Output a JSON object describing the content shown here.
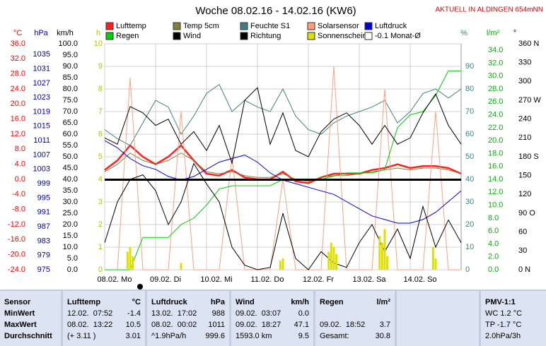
{
  "chart_data": {
    "type": "line",
    "title": "Woche 08.02.16 - 14.02.16 (KW6)",
    "subtitle": "AKTUELL IN ALDINGEN 654mNN",
    "x": [
      0,
      0.25,
      0.5,
      0.75,
      1,
      1.25,
      1.5,
      1.75,
      2,
      2.25,
      2.5,
      2.75,
      3,
      3.25,
      3.5,
      3.75,
      4,
      4.25,
      4.5,
      4.75,
      5,
      5.25,
      5.5,
      5.75,
      6,
      6.25,
      6.5,
      6.75,
      7
    ],
    "xlim": [
      0,
      7
    ],
    "xticks": [
      {
        "value": 0,
        "label": "08.02. Mo"
      },
      {
        "value": 1,
        "label": "09.02. Di"
      },
      {
        "value": 2,
        "label": "10.02. Mi"
      },
      {
        "value": 3,
        "label": "11.02. Do"
      },
      {
        "value": 4,
        "label": "12.02. Fr"
      },
      {
        "value": 5,
        "label": "13.02. Sa"
      },
      {
        "value": 6,
        "label": "14.02. So"
      }
    ],
    "axes": [
      {
        "label": "°C",
        "color": "#ff0000",
        "lim": [
          -24,
          36
        ],
        "ticks": [
          {
            "value": 36,
            "label": "36.0"
          },
          {
            "value": 32,
            "label": "32.0"
          },
          {
            "value": 28,
            "label": "28.0"
          },
          {
            "value": 24,
            "label": "24.0"
          },
          {
            "value": 20,
            "label": "20.0"
          },
          {
            "value": 16,
            "label": "16.0"
          },
          {
            "value": 12,
            "label": "12.0"
          },
          {
            "value": 8,
            "label": "8.0"
          },
          {
            "value": 4,
            "label": "4.0"
          },
          {
            "value": 0,
            "label": "0.0"
          },
          {
            "value": -4,
            "label": "-4.0"
          },
          {
            "value": -8,
            "label": "-8.0"
          },
          {
            "value": -12,
            "label": "-12.0"
          },
          {
            "value": -16,
            "label": "-16.0"
          },
          {
            "value": -20,
            "label": "-20.0"
          },
          {
            "value": -24,
            "label": "-24.0"
          }
        ]
      },
      {
        "label": "hPa",
        "color": "#0000c0",
        "lim": [
          975,
          1038
        ],
        "ticks": [
          1035,
          1031,
          1027,
          1023,
          1019,
          1015,
          1011,
          1007,
          1003,
          999,
          995,
          991,
          987,
          983,
          979,
          975
        ]
      },
      {
        "label": "km/h",
        "color": "#000000",
        "lim": [
          0,
          100
        ],
        "ticks": [
          {
            "value": 100,
            "label": "100.0"
          },
          {
            "value": 95,
            "label": "95.0"
          },
          {
            "value": 90,
            "label": "90.0"
          },
          {
            "value": 85,
            "label": "85.0"
          },
          {
            "value": 80,
            "label": "80.0"
          },
          {
            "value": 75,
            "label": "75.0"
          },
          {
            "value": 70,
            "label": "70.0"
          },
          {
            "value": 65,
            "label": "65.0"
          },
          {
            "value": 60,
            "label": "60.0"
          },
          {
            "value": 55,
            "label": "55.0"
          },
          {
            "value": 50,
            "label": "50.0"
          },
          {
            "value": 45,
            "label": "45.0"
          },
          {
            "value": 40,
            "label": "40.0"
          },
          {
            "value": 35,
            "label": "35.0"
          },
          {
            "value": 30,
            "label": "30.0"
          },
          {
            "value": 25,
            "label": "25.0"
          },
          {
            "value": 20,
            "label": "20.0"
          },
          {
            "value": 15,
            "label": "15.0"
          },
          {
            "value": 10,
            "label": "10.0"
          },
          {
            "value": 5,
            "label": "5.0"
          },
          {
            "value": 0,
            "label": "0.0"
          }
        ]
      },
      {
        "label": "h",
        "color": "#c0c000",
        "lim": [
          0,
          10
        ],
        "ticks": [
          10,
          9,
          8,
          7,
          6,
          5,
          4,
          3,
          2,
          1,
          0
        ],
        "grid": true
      },
      {
        "label": "%",
        "color": "#408080",
        "lim": [
          0,
          100
        ],
        "ticks": [
          90,
          80,
          70,
          60,
          50,
          40,
          30,
          20,
          10,
          0
        ]
      },
      {
        "label": "l/m²",
        "color": "#00b000",
        "lim": [
          0,
          35
        ],
        "ticks": [
          {
            "value": 34,
            "label": "34.0"
          },
          {
            "value": 32,
            "label": "32.0"
          },
          {
            "value": 30,
            "label": "30.0"
          },
          {
            "value": 28,
            "label": "28.0"
          },
          {
            "value": 26,
            "label": "26.0"
          },
          {
            "value": 24,
            "label": "24.0"
          },
          {
            "value": 22,
            "label": "22.0"
          },
          {
            "value": 20,
            "label": "20.0"
          },
          {
            "value": 18,
            "label": "18.0"
          },
          {
            "value": 16,
            "label": "16.0"
          },
          {
            "value": 14,
            "label": "14.0"
          },
          {
            "value": 12,
            "label": "12.0"
          },
          {
            "value": 10,
            "label": "10.0"
          },
          {
            "value": 8,
            "label": "8.0"
          },
          {
            "value": 6,
            "label": "6.0"
          },
          {
            "value": 4,
            "label": "4.0"
          },
          {
            "value": 2,
            "label": "2.0"
          },
          {
            "value": 0,
            "label": "0.0"
          }
        ]
      },
      {
        "label": "°",
        "color": "#000000",
        "lim": [
          0,
          360
        ],
        "ticks": [
          {
            "value": 360,
            "label": "360 N"
          },
          {
            "value": 330,
            "label": "330"
          },
          {
            "value": 300,
            "label": "300"
          },
          {
            "value": 270,
            "label": "270 W"
          },
          {
            "value": 240,
            "label": "240"
          },
          {
            "value": 210,
            "label": "210"
          },
          {
            "value": 180,
            "label": "180 S"
          },
          {
            "value": 150,
            "label": "150"
          },
          {
            "value": 120,
            "label": "120"
          },
          {
            "value": 90,
            "label": "90 O"
          },
          {
            "value": 60,
            "label": "60"
          },
          {
            "value": 30,
            "label": "30"
          },
          {
            "value": 0,
            "label": "0 N"
          }
        ]
      }
    ],
    "series": [
      {
        "name": "Lufttemp",
        "color": "#ff2020",
        "axis": 0,
        "style": "line",
        "width": 2.5,
        "values": [
          2.5,
          5,
          9,
          6,
          4,
          6,
          9,
          5,
          1.5,
          1,
          2.5,
          0.5,
          0,
          0,
          2,
          -0.5,
          -1,
          0.5,
          1.5,
          1.5,
          1.5,
          2.5,
          3,
          4,
          3,
          3.5,
          3.5,
          3,
          1.5
        ]
      },
      {
        "name": "Temp 5cm",
        "color": "#808040",
        "axis": 0,
        "style": "line",
        "width": 1,
        "values": [
          2,
          4,
          7,
          5,
          4,
          5,
          7,
          5,
          2,
          1.5,
          2,
          1,
          0.5,
          0.5,
          1.5,
          0,
          -0.5,
          0.5,
          1,
          1,
          1.5,
          2,
          2.5,
          3,
          2.5,
          3,
          3,
          2.5,
          1.5
        ]
      },
      {
        "name": "Feuchte S1",
        "color": "#408080",
        "axis": 4,
        "style": "line",
        "width": 1,
        "values": [
          62,
          58,
          55,
          65,
          75,
          72,
          60,
          68,
          78,
          82,
          70,
          75,
          72,
          70,
          80,
          68,
          62,
          60,
          65,
          68,
          70,
          72,
          75,
          65,
          70,
          78,
          80,
          76,
          80
        ]
      },
      {
        "name": "Solarsensor",
        "color": "#ffa080",
        "axis": 3,
        "style": "line",
        "width": 1,
        "values": [
          0,
          0,
          8.5,
          0,
          0,
          0,
          7,
          0,
          0,
          0,
          5,
          0,
          0,
          0,
          4,
          0,
          0,
          0,
          9,
          0,
          0,
          0,
          8,
          0,
          0,
          0,
          7,
          0,
          0
        ]
      },
      {
        "name": "Luftdruck",
        "color": "#0000d0",
        "axis": 1,
        "style": "line",
        "width": 1,
        "values": [
          1011,
          1009,
          1006,
          1004,
          1003,
          1001,
          1000,
          1001,
          1003,
          1005,
          1006,
          1007,
          1005,
          1002,
          1000,
          999,
          998,
          997,
          996,
          994,
          992,
          990,
          989,
          988,
          988,
          989,
          991,
          994,
          997
        ]
      },
      {
        "name": "Regen",
        "color": "#00d000",
        "axis": 5,
        "style": "line",
        "width": 1,
        "values": [
          0,
          0,
          0,
          5,
          5,
          5,
          7,
          8,
          10,
          12.5,
          13,
          13,
          13,
          13,
          14,
          14,
          14,
          14,
          14.5,
          15,
          15,
          15,
          15.5,
          22,
          24,
          24.5,
          27,
          30.8,
          30.8
        ]
      },
      {
        "name": "Wind",
        "color": "#000000",
        "axis": 2,
        "style": "line",
        "width": 1,
        "values": [
          12,
          30,
          40,
          42,
          35,
          20,
          30,
          47,
          38,
          30,
          10,
          2,
          0,
          1,
          25,
          5,
          0,
          8,
          3,
          1,
          12,
          20,
          8,
          18,
          5,
          28,
          10,
          22,
          12
        ]
      },
      {
        "name": "Richtung",
        "color": "#000000",
        "axis": 6,
        "style": "line",
        "width": 1,
        "values": [
          210,
          200,
          260,
          250,
          230,
          240,
          200,
          220,
          190,
          230,
          170,
          270,
          290,
          200,
          250,
          190,
          180,
          220,
          240,
          250,
          230,
          200,
          230,
          200,
          210,
          250,
          280,
          230,
          200
        ]
      },
      {
        "name": "Sonnenschein",
        "color": "#e0e000",
        "axis": 3,
        "style": "bar",
        "x": [
          0.45,
          0.5,
          0.55,
          1.5,
          3.45,
          3.5,
          4.4,
          4.45,
          4.5,
          4.55,
          5.4,
          5.45,
          5.5,
          5.55,
          6.45,
          6.5
        ],
        "values": [
          0.8,
          1,
          0.6,
          0.3,
          0.4,
          0.5,
          0.8,
          1.2,
          1,
          0.7,
          1.5,
          1.2,
          1.8,
          0.6,
          1,
          0.5
        ]
      },
      {
        "name": "-0.1 Monat-Ø",
        "color": "#000000",
        "axis": 0,
        "style": "hline",
        "value": -0.1
      }
    ]
  },
  "table": {
    "panels": [
      {
        "rows": [
          [
            "Sensor"
          ],
          [
            "MinWert"
          ],
          [
            "MaxWert"
          ],
          [
            "Durchschnitt"
          ]
        ]
      },
      {
        "rows": [
          [
            "Lufttemp",
            "°C"
          ],
          [
            "12.02.  07:52",
            "-1.4"
          ],
          [
            "08.02.  13:22",
            "10.5"
          ],
          [
            "(+ 3.11 )",
            "3.01"
          ]
        ]
      },
      {
        "rows": [
          [
            "Luftdruck",
            "hPa"
          ],
          [
            "13.02.  17:02",
            "988"
          ],
          [
            "08.02.  00:02",
            "1011"
          ],
          [
            "^1.9hPa/h",
            "999.6"
          ]
        ]
      },
      {
        "rows": [
          [
            "Wind",
            "km/h"
          ],
          [
            "09.02.  03:07",
            "0.0"
          ],
          [
            "09.02.  18:27",
            "47.1"
          ],
          [
            "1593.0 km",
            "9.5"
          ]
        ]
      },
      {
        "rows": [
          [
            "Regen",
            "l/m²"
          ],
          [],
          [
            "09.02.  18:52",
            "3.7"
          ],
          [
            "Gesamt:",
            "30.8"
          ]
        ]
      },
      {
        "rows": [
          [
            "PMV-1:1"
          ],
          [
            "WC 1.2 °C"
          ],
          [
            "TP -1.7 °C"
          ],
          [
            "2.0hPa/3h"
          ]
        ]
      }
    ]
  }
}
